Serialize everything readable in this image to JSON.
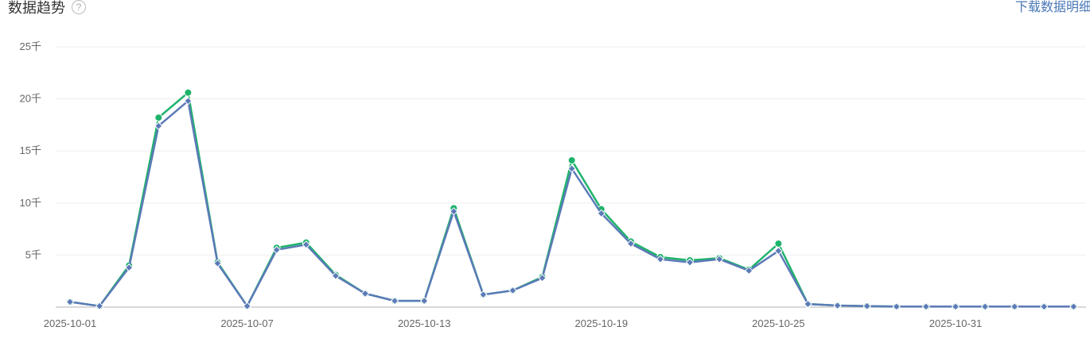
{
  "header": {
    "title": "数据趋势",
    "help_icon": "question-circle-icon",
    "download_label": "下载数据明细"
  },
  "chart_data": {
    "type": "line",
    "title": "",
    "xlabel": "",
    "ylabel": "",
    "ylim": [
      0,
      25000
    ],
    "y_ticks": [
      "5千",
      "10千",
      "15千",
      "20千",
      "25千"
    ],
    "x_tick_labels": [
      "2025-10-01",
      "2025-10-07",
      "2025-10-13",
      "2025-10-19",
      "2025-10-25",
      "2025-10-31"
    ],
    "x": [
      "2025-10-01",
      "2025-10-02",
      "2025-10-03",
      "2025-10-04",
      "2025-10-05",
      "2025-10-06",
      "2025-10-07",
      "2025-10-08",
      "2025-10-09",
      "2025-10-10",
      "2025-10-11",
      "2025-10-12",
      "2025-10-13",
      "2025-10-14",
      "2025-10-15",
      "2025-10-16",
      "2025-10-17",
      "2025-10-18",
      "2025-10-19",
      "2025-10-20",
      "2025-10-21",
      "2025-10-22",
      "2025-10-23",
      "2025-10-24",
      "2025-10-25",
      "2025-10-26",
      "2025-10-27",
      "2025-10-28",
      "2025-10-29",
      "2025-10-30",
      "2025-10-31",
      "2025-11-01",
      "2025-11-02",
      "2025-11-03",
      "2025-11-04"
    ],
    "grid": true,
    "series": [
      {
        "color": "#1db36b",
        "marker": "circle",
        "values": [
          500,
          100,
          4000,
          18200,
          20600,
          4300,
          100,
          5700,
          6200,
          3100,
          1300,
          600,
          600,
          9500,
          1200,
          1600,
          2900,
          14100,
          9400,
          6300,
          4800,
          4500,
          4700,
          3600,
          6100,
          300,
          150,
          100,
          50,
          50,
          50,
          50,
          50,
          50,
          50
        ]
      },
      {
        "color": "#5b7ab7",
        "marker": "diamond",
        "values": [
          500,
          100,
          3800,
          17400,
          19800,
          4200,
          100,
          5500,
          6000,
          3000,
          1300,
          600,
          600,
          9200,
          1200,
          1600,
          2800,
          13300,
          9000,
          6100,
          4600,
          4300,
          4600,
          3500,
          5400,
          300,
          150,
          100,
          50,
          50,
          50,
          50,
          50,
          50,
          50
        ]
      }
    ]
  }
}
